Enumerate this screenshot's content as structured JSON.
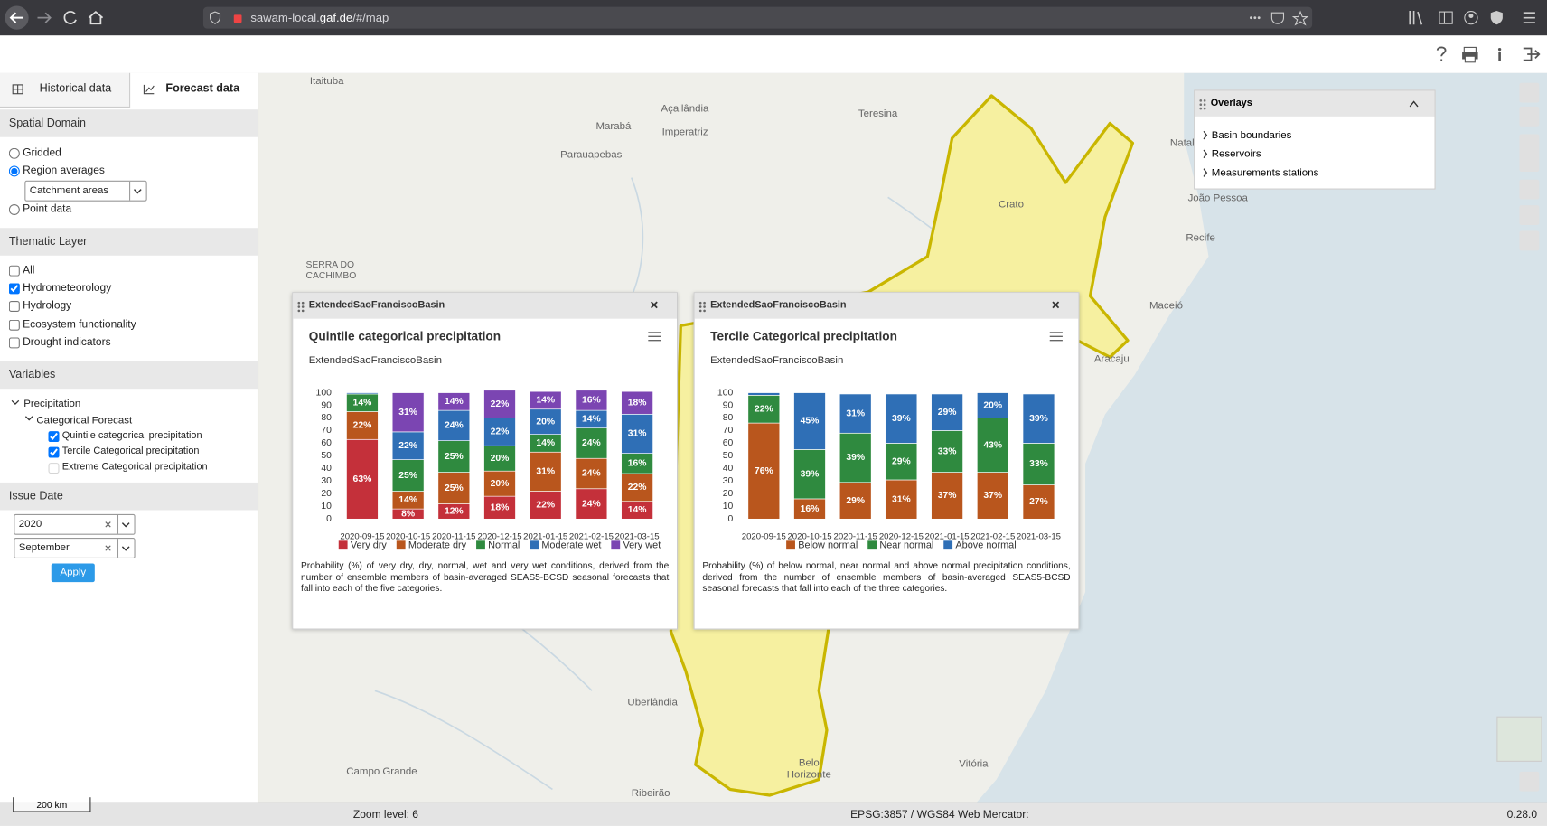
{
  "browser": {
    "url_host": "sawam-local.",
    "url_domain": "gaf.de",
    "url_path": "/#/map"
  },
  "tabs": [
    "Historical data",
    "Forecast data"
  ],
  "sidebar": {
    "spatial_domain": {
      "title": "Spatial Domain",
      "options": [
        "Gridded",
        "Region averages",
        "Point data"
      ],
      "select": "Catchment areas"
    },
    "thematic_layer": {
      "title": "Thematic Layer",
      "options": [
        "All",
        "Hydrometeorology",
        "Hydrology",
        "Ecosystem functionality",
        "Drought indicators"
      ]
    },
    "variables": {
      "title": "Variables",
      "group": "Precipitation",
      "subgroup": "Categorical Forecast",
      "items": [
        "Quintile categorical precipitation",
        "Tercile Categorical precipitation",
        "Extreme Categorical precipitation"
      ]
    },
    "issue_date": {
      "title": "Issue Date",
      "year": "2020",
      "month": "September",
      "button": "Apply"
    }
  },
  "overlays": {
    "title": "Overlays",
    "items": [
      "Basin boundaries",
      "Reservoirs",
      "Measurements stations"
    ]
  },
  "map": {
    "labels": [
      "Itaituba",
      "Açailândia",
      "Marabá",
      "Imperatriz",
      "Teresina",
      "Parauapebas",
      "Natal",
      "João Pessoa",
      "Recife",
      "Crato",
      "Maceió",
      "Aracaju",
      "Uberlândia",
      "Campo Grande",
      "Belo Horizonte",
      "Vitória",
      "Ribeirão",
      "SERRA DO CACHIMBO"
    ],
    "scale": "200 km"
  },
  "status": {
    "zoom": "Zoom level: 6",
    "projection": "EPSG:3857 / WGS84 Web Mercator:",
    "version": "0.28.0"
  },
  "chart_data": [
    {
      "type": "bar",
      "stacked": true,
      "panel": "ExtendedSaoFranciscoBasin",
      "title": "Quintile categorical precipitation",
      "subtitle": "ExtendedSaoFranciscoBasin",
      "caption": "Probability (%) of very dry, dry, normal, wet and very wet conditions, derived from the number of ensemble members of basin-averaged SEAS5-BCSD seasonal forecasts that fall into each of the five categories.",
      "categories": [
        "2020-09-15",
        "2020-10-15",
        "2020-11-15",
        "2020-12-15",
        "2021-01-15",
        "2021-02-15",
        "2021-03-15"
      ],
      "series": [
        {
          "name": "Very dry",
          "color": "#c4303a",
          "values": [
            63,
            8,
            12,
            18,
            22,
            24,
            14
          ],
          "value_labels": [
            "63%",
            "8%",
            "12%",
            "18%",
            "22%",
            "24%",
            "14%"
          ]
        },
        {
          "name": "Moderate dry",
          "color": "#b9561d",
          "values": [
            22,
            14,
            25,
            20,
            31,
            24,
            22
          ],
          "value_labels": [
            "22%",
            "14%",
            "25%",
            "20%",
            "31%",
            "24%",
            "22%"
          ]
        },
        {
          "name": "Normal",
          "color": "#2f8a3f",
          "values": [
            14,
            25,
            25,
            20,
            14,
            24,
            16
          ],
          "value_labels": [
            "14%",
            "25%",
            "25%",
            "20%",
            "14%",
            "24%",
            "16%"
          ]
        },
        {
          "name": "Moderate wet",
          "color": "#2f6fb6",
          "values": [
            1,
            22,
            24,
            22,
            20,
            14,
            31
          ],
          "value_labels": [
            null,
            "22%",
            "24%",
            "22%",
            "20%",
            "14%",
            "31%"
          ]
        },
        {
          "name": "Very wet",
          "color": "#7b45b2",
          "values": [
            0,
            31,
            14,
            22,
            14,
            16,
            18
          ],
          "value_labels": [
            null,
            "31%",
            "14%",
            "22%",
            "14%",
            "16%",
            "18%"
          ]
        }
      ],
      "ylim": [
        0,
        100
      ],
      "yticks": [
        0,
        10,
        20,
        30,
        40,
        50,
        60,
        70,
        80,
        90,
        100
      ]
    },
    {
      "type": "bar",
      "stacked": true,
      "panel": "ExtendedSaoFranciscoBasin",
      "title": "Tercile Categorical precipitation",
      "subtitle": "ExtendedSaoFranciscoBasin",
      "caption": "Probability (%) of below normal, near normal and above normal precipitation conditions, derived from the number of ensemble members of basin-averaged SEAS5-BCSD seasonal forecasts that fall into each of the three categories.",
      "categories": [
        "2020-09-15",
        "2020-10-15",
        "2020-11-15",
        "2020-12-15",
        "2021-01-15",
        "2021-02-15",
        "2021-03-15"
      ],
      "series": [
        {
          "name": "Below normal",
          "color": "#b9561d",
          "values": [
            76,
            16,
            29,
            31,
            37,
            37,
            27
          ],
          "value_labels": [
            "76%",
            "16%",
            "29%",
            "31%",
            "37%",
            "37%",
            "27%"
          ]
        },
        {
          "name": "Near normal",
          "color": "#2f8a3f",
          "values": [
            22,
            39,
            39,
            29,
            33,
            43,
            33
          ],
          "value_labels": [
            "22%",
            "39%",
            "39%",
            "29%",
            "33%",
            "43%",
            "33%"
          ]
        },
        {
          "name": "Above normal",
          "color": "#2f6fb6",
          "values": [
            2,
            45,
            31,
            39,
            29,
            20,
            39
          ],
          "value_labels": [
            null,
            "45%",
            "31%",
            "39%",
            "29%",
            "20%",
            "39%"
          ]
        }
      ],
      "ylim": [
        0,
        100
      ],
      "yticks": [
        0,
        10,
        20,
        30,
        40,
        50,
        60,
        70,
        80,
        90,
        100
      ]
    }
  ]
}
